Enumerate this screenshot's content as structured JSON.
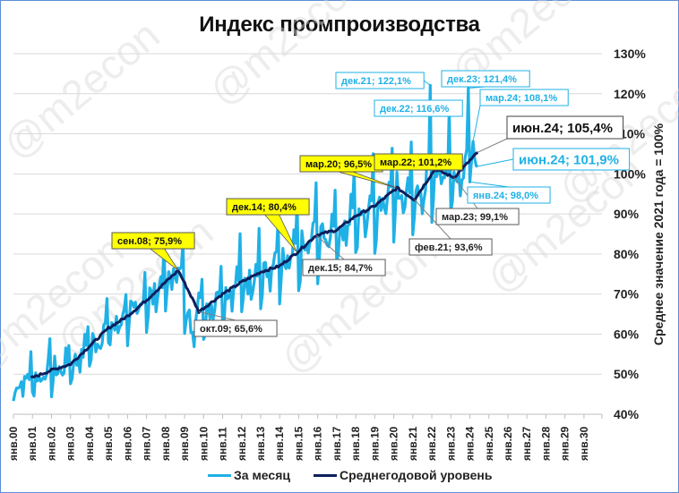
{
  "chart_data": {
    "type": "line",
    "title": "Индекс промпроизводства",
    "xlabel": "",
    "ylabel": "Среднее значение 2021 года = 100%",
    "ylim": [
      40,
      130
    ],
    "y_ticks": [
      "40%",
      "50%",
      "60%",
      "70%",
      "80%",
      "90%",
      "100%",
      "110%",
      "120%",
      "130%"
    ],
    "x_ticks": [
      "янв.00",
      "янв.01",
      "янв.02",
      "янв.03",
      "янв.04",
      "янв.05",
      "янв.06",
      "янв.07",
      "янв.08",
      "янв.09",
      "янв.10",
      "янв.11",
      "янв.12",
      "янв.13",
      "янв.14",
      "янв.15",
      "янв.16",
      "янв.17",
      "янв.18",
      "янв.19",
      "янв.20",
      "янв.21",
      "янв.22",
      "янв.23",
      "янв.24",
      "янв.25",
      "янв.26",
      "янв.27",
      "янв.28",
      "янв.29",
      "янв.30"
    ],
    "grid": "horizontal",
    "legend_position": "bottom",
    "series": [
      {
        "name": "За месяц",
        "color": "#1fb1e6",
        "description": "monthly index, strong seasonality with December peaks",
        "anchors": [
          {
            "x": "янв.00",
            "y": 48.5
          },
          {
            "x": "янв.04",
            "y": 58
          },
          {
            "x": "сен.08",
            "y": 76
          },
          {
            "x": "янв.09",
            "y": 60
          },
          {
            "x": "янв.14",
            "y": 79
          },
          {
            "x": "дек.21",
            "y": 122.1
          },
          {
            "x": "дек.22",
            "y": 116.6
          },
          {
            "x": "дек.23",
            "y": 121.4
          },
          {
            "x": "янв.24",
            "y": 98.0
          },
          {
            "x": "мар.24",
            "y": 108.1
          },
          {
            "x": "июн.24",
            "y": 101.9
          }
        ]
      },
      {
        "name": "Среднегодовой уровень",
        "color": "#0d1f5c",
        "description": "12-month moving average",
        "points": [
          {
            "x": "дек.00",
            "y": 49
          },
          {
            "x": "янв.02",
            "y": 51
          },
          {
            "x": "янв.03",
            "y": 52.5
          },
          {
            "x": "янв.04",
            "y": 57
          },
          {
            "x": "янв.05",
            "y": 61.5
          },
          {
            "x": "янв.06",
            "y": 64.5
          },
          {
            "x": "янв.07",
            "y": 68.5
          },
          {
            "x": "янв.08",
            "y": 73
          },
          {
            "x": "сен.08",
            "y": 75.9
          },
          {
            "x": "окт.09",
            "y": 65.6
          },
          {
            "x": "янв.11",
            "y": 70
          },
          {
            "x": "янв.12",
            "y": 73
          },
          {
            "x": "янв.13",
            "y": 75.5
          },
          {
            "x": "янв.14",
            "y": 77
          },
          {
            "x": "дек.14",
            "y": 80.4
          },
          {
            "x": "дек.15",
            "y": 84.7
          },
          {
            "x": "янв.17",
            "y": 86
          },
          {
            "x": "янв.18",
            "y": 89.5
          },
          {
            "x": "янв.19",
            "y": 92
          },
          {
            "x": "мар.20",
            "y": 96.5
          },
          {
            "x": "фев.21",
            "y": 93.6
          },
          {
            "x": "мар.22",
            "y": 101.2
          },
          {
            "x": "мар.23",
            "y": 99.1
          },
          {
            "x": "июн.24",
            "y": 105.4
          }
        ]
      }
    ],
    "annotations": [
      {
        "label": "сен.08; 75,9%",
        "style": "yellow"
      },
      {
        "label": "окт.09; 65,6%",
        "style": "gray"
      },
      {
        "label": "дек.14; 80,4%",
        "style": "yellow"
      },
      {
        "label": "дек.15; 84,7%",
        "style": "gray"
      },
      {
        "label": "мар.20; 96,5%",
        "style": "yellow"
      },
      {
        "label": "фев.21; 93,6%",
        "style": "gray"
      },
      {
        "label": "мар.22; 101,2%",
        "style": "yellow"
      },
      {
        "label": "мар.23; 99,1%",
        "style": "gray"
      },
      {
        "label": "июн.24; 105,4%",
        "style": "gray-large"
      },
      {
        "label": "дек.21; 122,1%",
        "style": "blue"
      },
      {
        "label": "дек.22; 116,6%",
        "style": "blue"
      },
      {
        "label": "дек.23; 121,4%",
        "style": "blue"
      },
      {
        "label": "мар.24; 108,1%",
        "style": "blue"
      },
      {
        "label": "янв.24; 98,0%",
        "style": "blue"
      },
      {
        "label": "июн.24; 101,9%",
        "style": "blue-large"
      }
    ],
    "watermark": "@m2econ"
  },
  "legend": {
    "monthly": "За месяц",
    "annual": "Среднегодовой уровень"
  }
}
